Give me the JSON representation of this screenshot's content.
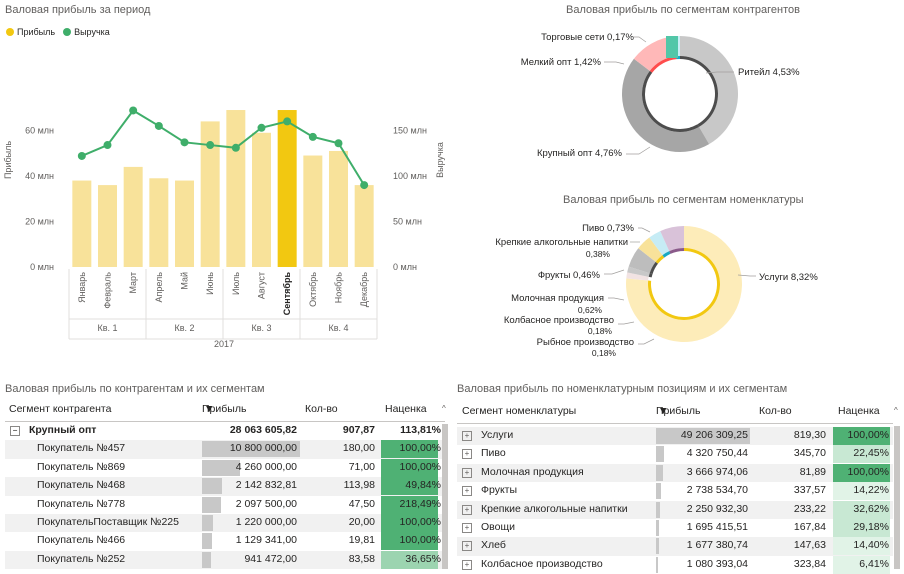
{
  "combo": {
    "title": "Валовая прибыль за период",
    "legend": [
      {
        "label": "Прибыль",
        "color": "#f2c811"
      },
      {
        "label": "Выручка",
        "color": "#3fae6a"
      }
    ],
    "y_left_label": "Прибыль",
    "y_right_label": "Выручка",
    "y_left_ticks": [
      "0 млн",
      "20 млн",
      "40 млн",
      "60 млн"
    ],
    "y_right_ticks": [
      "0 млн",
      "50 млн",
      "100 млн",
      "150 млн"
    ],
    "year": "2017"
  },
  "donut1": {
    "title": "Валовая прибыль по сегментам контрагентов",
    "labels": {
      "retail": "Ритейл 4,53%",
      "large": "Крупный опт 4,76%",
      "small": "Мелкий опт 1,42%",
      "chains": "Торговые сети 0,17%"
    }
  },
  "donut2": {
    "title": "Валовая прибыль по сегментам номенклатуры",
    "labels": {
      "services": "Услуги 8,32%",
      "beer": "Пиво 0,73%",
      "spirits_1": "Крепкие алкогольные напитки",
      "spirits_2": "0,38%",
      "fruits": "Фрукты 0,46%",
      "dairy_1": "Молочная продукция",
      "dairy_2": "0,62%",
      "sausage_1": "Колбасное производство",
      "sausage_2": "0,18%",
      "fish_1": "Рыбное производство",
      "fish_2": "0,18%"
    }
  },
  "chart_data": [
    {
      "type": "bar",
      "title": "Валовая прибыль за период",
      "categories": [
        "Январь",
        "Февраль",
        "Март",
        "Апрель",
        "Май",
        "Июнь",
        "Июль",
        "Август",
        "Сентябрь",
        "Октябрь",
        "Ноябрь",
        "Декабрь"
      ],
      "quarters": [
        "Кв. 1",
        "Кв. 2",
        "Кв. 3",
        "Кв. 4"
      ],
      "highlight_index": 8,
      "series": [
        {
          "name": "Прибыль",
          "type": "bar",
          "axis": "left",
          "values": [
            38,
            36,
            44,
            39,
            38,
            64,
            69,
            59,
            69,
            49,
            51,
            36
          ]
        },
        {
          "name": "Выручка",
          "type": "line",
          "axis": "right",
          "values": [
            122,
            134,
            172,
            155,
            137,
            134,
            131,
            153,
            160,
            143,
            136,
            90
          ]
        }
      ],
      "ylim_left": [
        0,
        80
      ],
      "ylim_right": [
        0,
        200
      ],
      "ylabel": "Прибыль",
      "ylabel_right": "Выручка"
    },
    {
      "type": "pie",
      "title": "Валовая прибыль по сегментам контрагентов",
      "categories": [
        "Ритейл",
        "Крупный опт",
        "Мелкий опт",
        "Торговые сети"
      ],
      "values": [
        4.53,
        4.76,
        1.42,
        0.17
      ]
    },
    {
      "type": "pie",
      "title": "Валовая прибыль по сегментам номенклатуры",
      "categories": [
        "Услуги",
        "Рыбное производство",
        "Колбасное производство",
        "Молочная продукция",
        "Фрукты",
        "Крепкие алкогольные напитки",
        "Пиво"
      ],
      "values": [
        8.32,
        0.18,
        0.18,
        0.62,
        0.46,
        0.38,
        0.73
      ]
    }
  ],
  "table1": {
    "title": "Валовая прибыль по контрагентам и их сегментам",
    "headers": [
      "Сегмент контрагента",
      "Прибыль",
      "Кол-во",
      "Наценка"
    ],
    "group": {
      "name": "Крупный опт",
      "profit": "28 063 605,82",
      "qty": "907,87",
      "markup": "113,81%"
    },
    "rows": [
      {
        "name": "Покупатель №457",
        "profit": "10 800 000,00",
        "qty": "180,00",
        "markup": "100,00%",
        "bar": 1.0,
        "m": 1.0
      },
      {
        "name": "Покупатель №869",
        "profit": "4 260 000,00",
        "qty": "71,00",
        "markup": "100,00%",
        "bar": 0.39,
        "m": 1.0
      },
      {
        "name": "Покупатель №468",
        "profit": "2 142 832,81",
        "qty": "113,98",
        "markup": "49,84%",
        "bar": 0.2,
        "m": 0.85
      },
      {
        "name": "Покупатель №778",
        "profit": "2 097 500,00",
        "qty": "47,50",
        "markup": "218,49%",
        "bar": 0.19,
        "m": 1.0
      },
      {
        "name": "ПокупательПоставщик №225",
        "profit": "1 220 000,00",
        "qty": "20,00",
        "markup": "100,00%",
        "bar": 0.11,
        "m": 1.0
      },
      {
        "name": "Покупатель №466",
        "profit": "1 129 341,00",
        "qty": "19,81",
        "markup": "100,00%",
        "bar": 0.1,
        "m": 1.0
      },
      {
        "name": "Покупатель №252",
        "profit": "941 472,00",
        "qty": "83,58",
        "markup": "36,65%",
        "bar": 0.09,
        "m": 0.55
      }
    ]
  },
  "table2": {
    "title": "Валовая прибыль по номенклатурным позициям и их сегментам",
    "headers": [
      "Сегмент номенклатуры",
      "Прибыль",
      "Кол-во",
      "Наценка"
    ],
    "rows": [
      {
        "name": "Услуги",
        "profit": "49 206 309,25",
        "qty": "819,30",
        "markup": "100,00%",
        "bar": 1.0,
        "m": 1.0
      },
      {
        "name": "Пиво",
        "profit": "4 320 750,44",
        "qty": "345,70",
        "markup": "22,45%",
        "bar": 0.09,
        "m": 0.22
      },
      {
        "name": "Молочная продукция",
        "profit": "3 666 974,06",
        "qty": "81,89",
        "markup": "100,00%",
        "bar": 0.075,
        "m": 1.0
      },
      {
        "name": "Фрукты",
        "profit": "2 738 534,70",
        "qty": "337,57",
        "markup": "14,22%",
        "bar": 0.056,
        "m": 0.14
      },
      {
        "name": "Крепкие алкогольные напитки",
        "profit": "2 250 932,30",
        "qty": "233,22",
        "markup": "32,62%",
        "bar": 0.046,
        "m": 0.33
      },
      {
        "name": "Овощи",
        "profit": "1 695 415,51",
        "qty": "167,84",
        "markup": "29,18%",
        "bar": 0.034,
        "m": 0.29
      },
      {
        "name": "Хлеб",
        "profit": "1 677 380,74",
        "qty": "147,63",
        "markup": "14,40%",
        "bar": 0.034,
        "m": 0.14
      },
      {
        "name": "Колбасное производство",
        "profit": "1 080 393,04",
        "qty": "323,84",
        "markup": "6,41%",
        "bar": 0.022,
        "m": 0.06
      }
    ]
  }
}
